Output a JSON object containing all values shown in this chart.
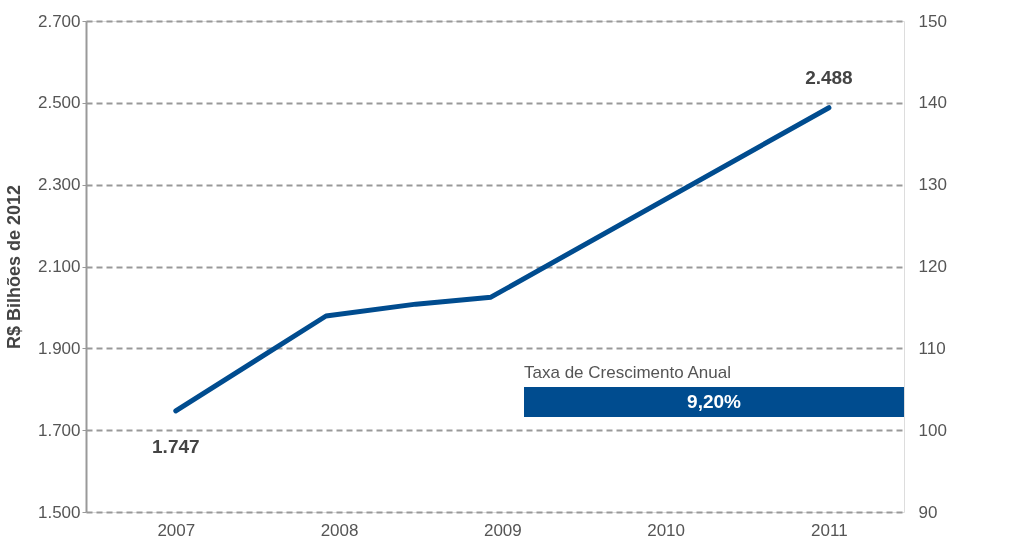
{
  "chart_data": {
    "type": "line",
    "ylabel": "R$ Bilhões de 2012",
    "x": [
      2007,
      2007.92,
      2008.47,
      2008.93,
      2011
    ],
    "series": [
      {
        "color": "#004c8f",
        "values": [
          1747,
          1979,
          2008,
          2025,
          2488
        ],
        "value_labels": [
          "1.747",
          null,
          null,
          null,
          "2.488"
        ]
      }
    ],
    "xlim": [
      2006.45,
      2011.46
    ],
    "xticks": [
      2007,
      2008,
      2009,
      2010,
      2011
    ],
    "ylim": [
      1500,
      2700
    ],
    "yticks": [
      {
        "value": 1500,
        "label": "1.500"
      },
      {
        "value": 1700,
        "label": "1.700"
      },
      {
        "value": 1900,
        "label": "1.900"
      },
      {
        "value": 2100,
        "label": "2.100"
      },
      {
        "value": 2300,
        "label": "2.300"
      },
      {
        "value": 2500,
        "label": "2.500"
      },
      {
        "value": 2700,
        "label": "2.700"
      }
    ],
    "y2lim": [
      90,
      150
    ],
    "y2ticks": [
      90,
      100,
      110,
      120,
      130,
      140,
      150
    ],
    "grid": "y",
    "marker": "none",
    "line_style": "solid",
    "annotations": [
      "Taxa de Crescimento Anual",
      "9,20%"
    ]
  }
}
